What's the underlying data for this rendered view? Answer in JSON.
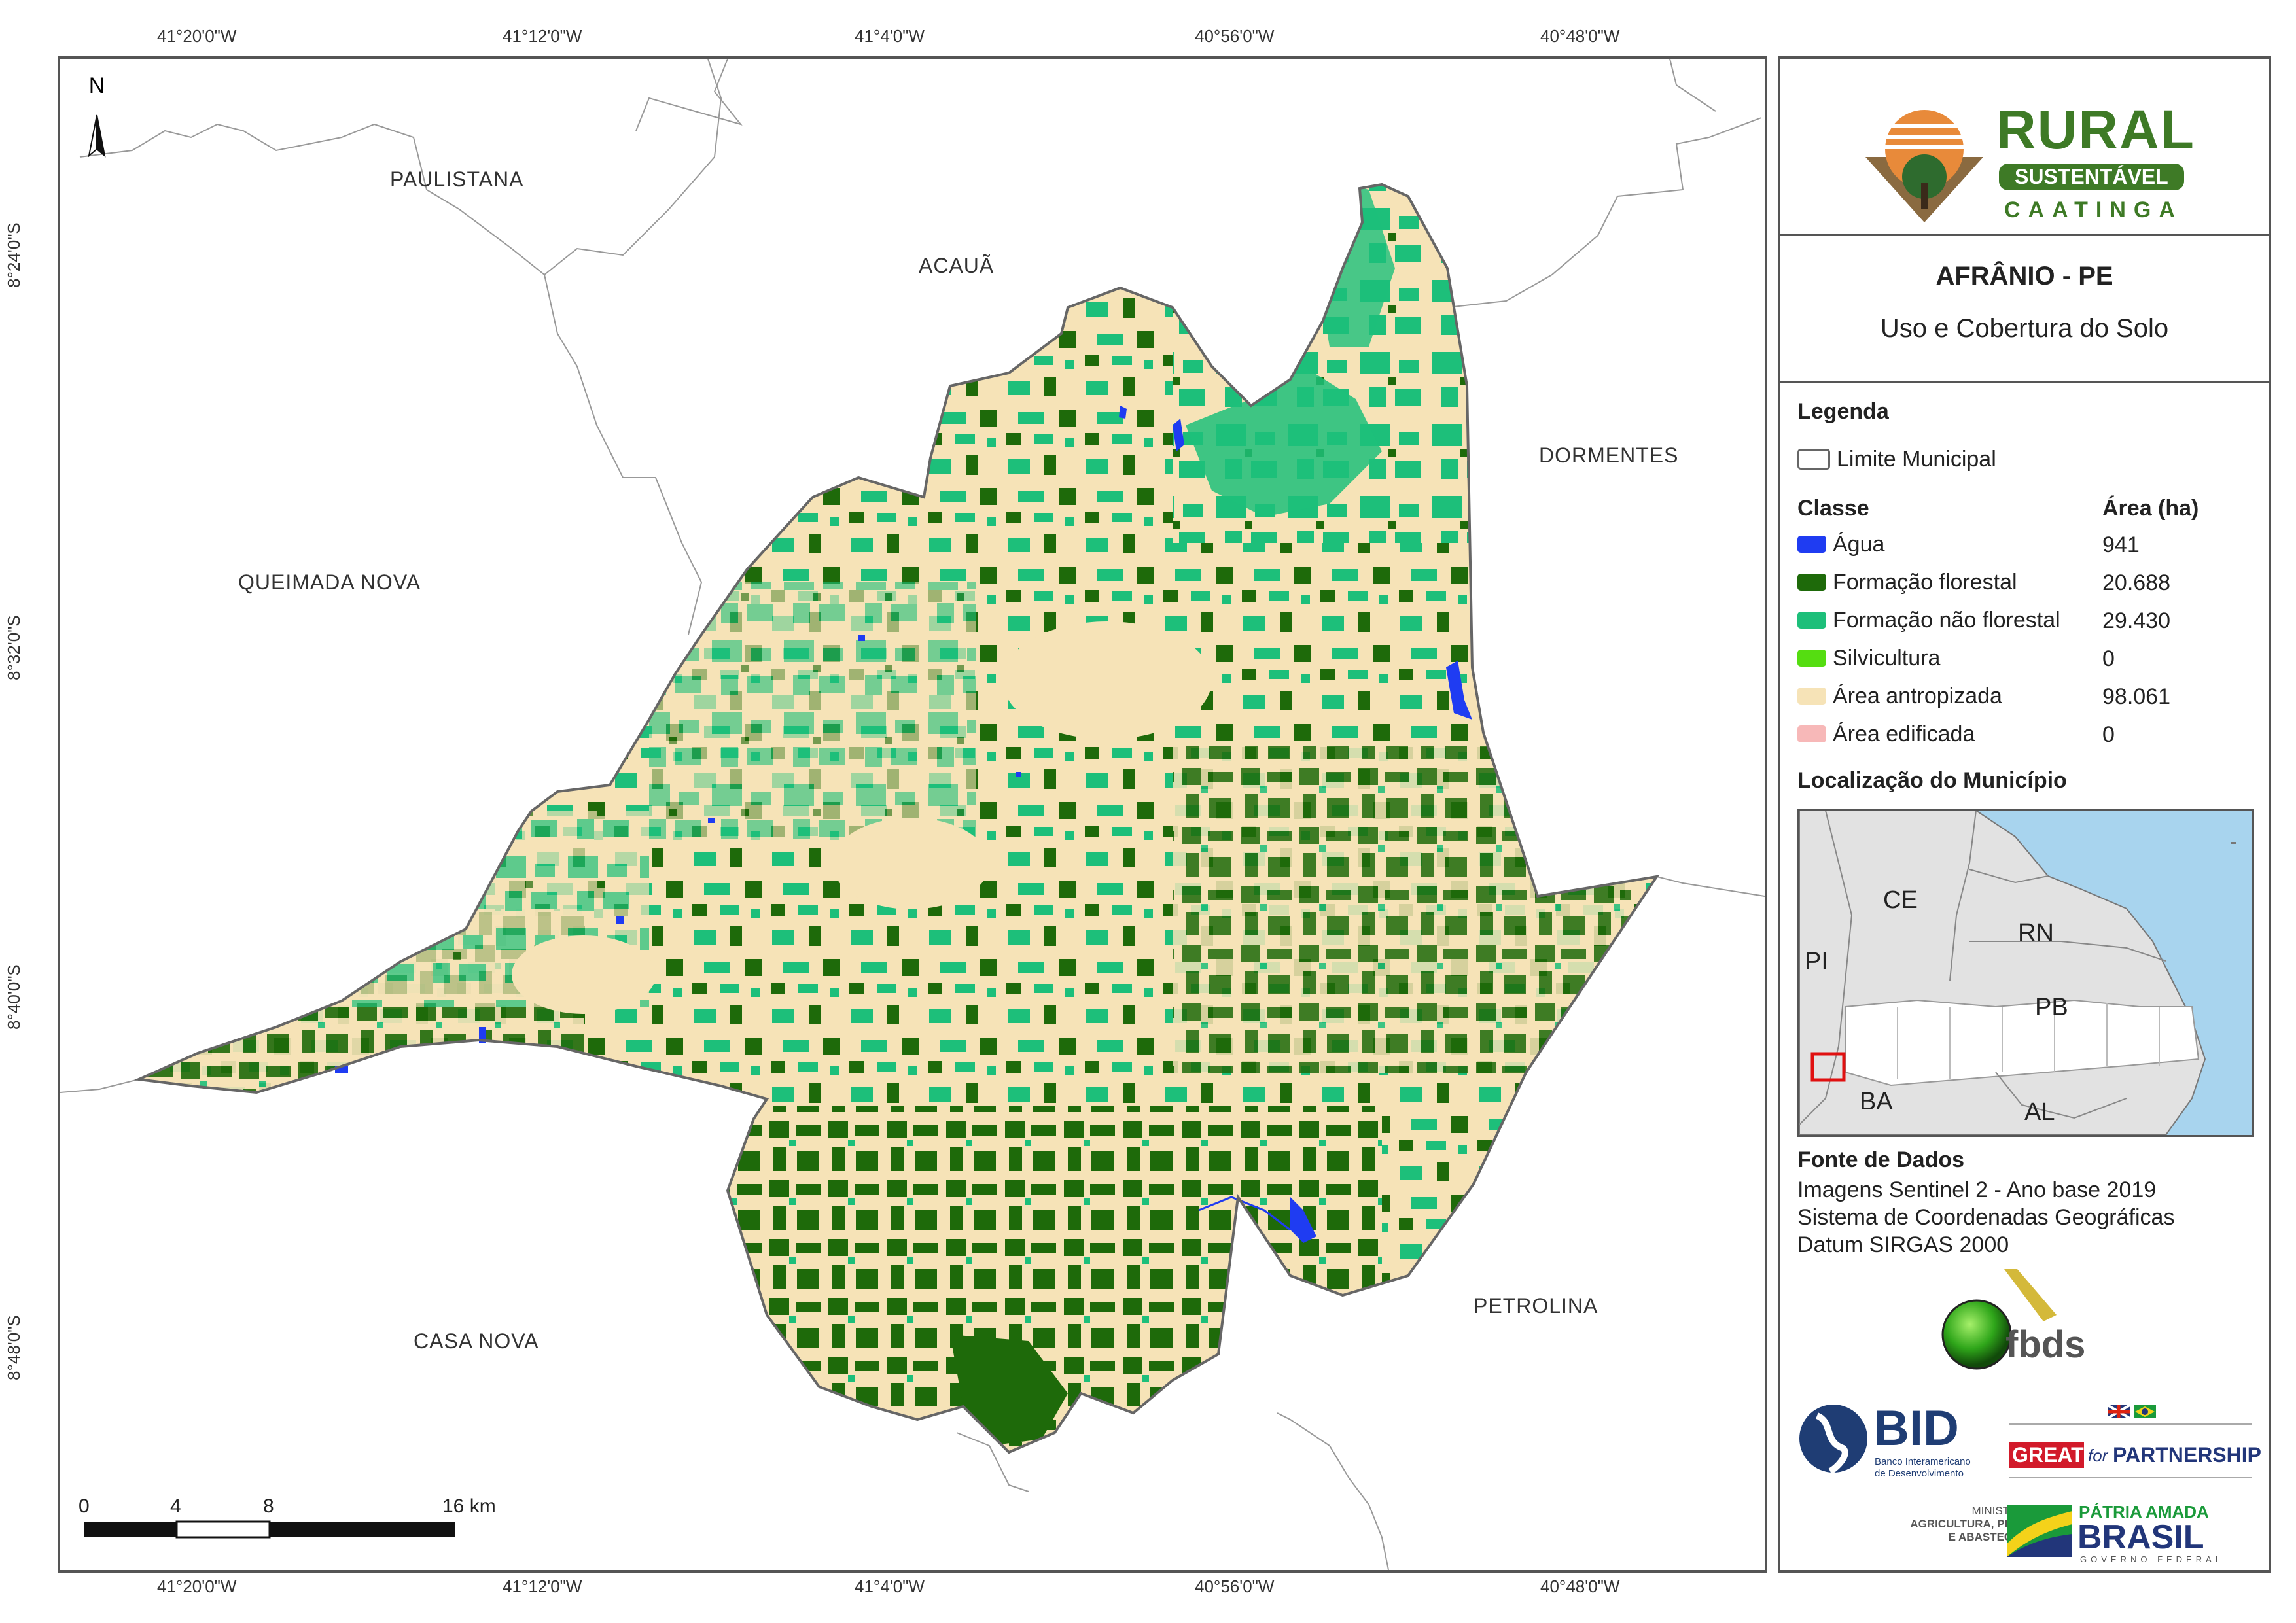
{
  "coords": {
    "top": [
      "41°20'0\"W",
      "41°12'0\"W",
      "41°4'0\"W",
      "40°56'0\"W",
      "40°48'0\"W"
    ],
    "bottom": [
      "41°20'0\"W",
      "41°12'0\"W",
      "41°4'0\"W",
      "40°56'0\"W",
      "40°48'0\"W"
    ],
    "left": [
      "8°24'0\"S",
      "8°32'0\"S",
      "8°40'0\"S",
      "8°48'0\"S"
    ]
  },
  "places": {
    "paulistana": "PAULISTANA",
    "acaua": "ACAUÃ",
    "dormentes": "DORMENTES",
    "queimada_nova": "QUEIMADA NOVA",
    "casa_nova": "CASA NOVA",
    "petrolina": "PETROLINA"
  },
  "north_label": "N",
  "scale": {
    "labels": [
      "0",
      "4",
      "8",
      "16 km"
    ]
  },
  "panel": {
    "logo": {
      "line1": "RURAL",
      "line2": "SUSTENTÁVEL",
      "line3": "CAATINGA"
    },
    "title": "AFRÂNIO - PE",
    "subtitle": "Uso e Cobertura do Solo",
    "legend_heading": "Legenda",
    "limit_label": "Limite Municipal",
    "class_heading": "Classe",
    "area_heading": "Área (ha)",
    "classes": [
      {
        "name": "Água",
        "area": "941",
        "color": "#1f3cf2"
      },
      {
        "name": "Formação florestal",
        "area": "20.688",
        "color": "#1e6a0a"
      },
      {
        "name": "Formação não florestal",
        "area": "29.430",
        "color": "#1dbf7a"
      },
      {
        "name": "Silvicultura",
        "area": "0",
        "color": "#55dd11"
      },
      {
        "name": "Área antropizada",
        "area": "98.061",
        "color": "#f6e3b7"
      },
      {
        "name": "Área edificada",
        "area": "0",
        "color": "#f7b8b8"
      }
    ],
    "location_heading": "Localização do Município",
    "inset_labels": {
      "ce": "CE",
      "rn": "RN",
      "pi": "PI",
      "pb": "PB",
      "ba": "BA",
      "al": "AL"
    },
    "sources_heading": "Fonte de Dados",
    "sources": [
      "Imagens Sentinel 2 - Ano base 2019",
      "Sistema de Coordenadas Geográficas",
      "Datum SIRGAS 2000"
    ],
    "logos": {
      "fbds": "fbds",
      "bid": "BID",
      "bid_sub1": "Banco Interamericano",
      "bid_sub2": "de Desenvolvimento",
      "great": "GREAT",
      "great_for": "for",
      "partnership": "PARTNERSHIP",
      "ministerio1": "MINISTÉRIO DA",
      "ministerio2": "AGRICULTURA, PECUÁRIA",
      "ministerio3": "E ABASTECIMENTO",
      "patria": "PÁTRIA AMADA",
      "brasil": "BRASIL",
      "governo": "GOVERNO FEDERAL"
    }
  },
  "colors": {
    "water": "#1f3cf2",
    "forest": "#1e6a0a",
    "nonforest": "#1dbf7a",
    "anthropic": "#f6e3b7",
    "border": "#666666",
    "inset_sea": "#a8d4ee",
    "inset_land": "#e2e2e2"
  }
}
